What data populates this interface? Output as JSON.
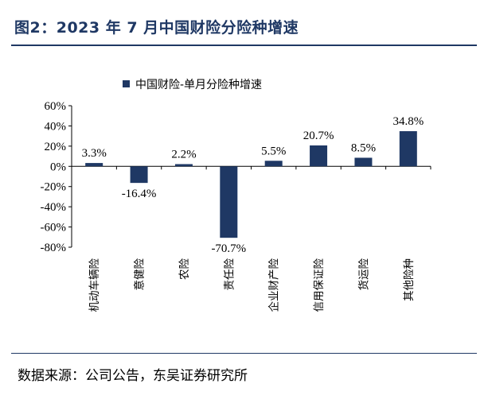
{
  "figure": {
    "title": "图2：2023 年 7 月中国财险分险种增速",
    "source": "数据来源：公司公告，东吴证券研究所"
  },
  "colors": {
    "bar": "#1f3864",
    "rule": "#1f3864"
  },
  "chart_data": {
    "type": "bar",
    "title": "",
    "xlabel": "",
    "ylabel": "",
    "ylim": [
      -80,
      60
    ],
    "yticks": [
      60,
      40,
      20,
      0,
      -20,
      -40,
      -60,
      -80
    ],
    "ytick_labels": [
      "60%",
      "40%",
      "20%",
      "0%",
      "-20%",
      "-40%",
      "-60%",
      "-80%"
    ],
    "legend_position": "top",
    "grid": false,
    "categories": [
      "机动车辆险",
      "意健险",
      "农险",
      "责任险",
      "企业财产险",
      "信用保证险",
      "货运险",
      "其他险种"
    ],
    "series": [
      {
        "name": "中国财险-单月分险种增速",
        "values": [
          3.3,
          -16.4,
          2.2,
          -70.7,
          5.5,
          20.7,
          8.5,
          34.8
        ],
        "labels": [
          "3.3%",
          "-16.4%",
          "2.2%",
          "-70.7%",
          "5.5%",
          "20.7%",
          "8.5%",
          "34.8%"
        ]
      }
    ]
  }
}
